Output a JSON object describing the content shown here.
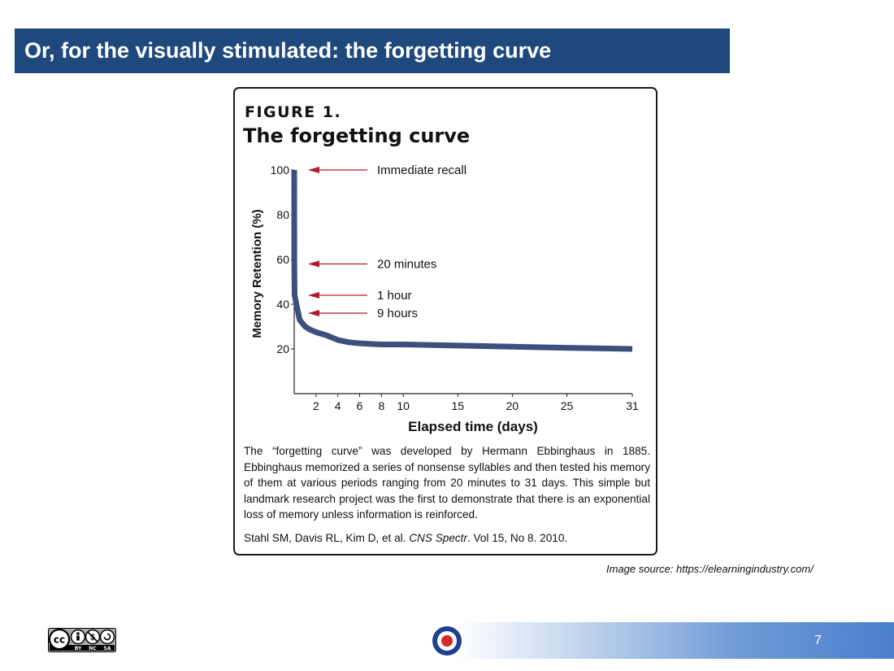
{
  "slide": {
    "title": "Or, for the visually stimulated: the forgetting curve",
    "image_source": "Image source: https://elearningindustry.com/",
    "page_number": "7",
    "license_badge": {
      "icon": "creative-commons-by-nc-sa-icon",
      "labels": [
        "BY",
        "NC",
        "SA"
      ]
    },
    "logo_icon": "roundel-logo-icon"
  },
  "figure": {
    "label": "FIGURE 1.",
    "title": "The forgetting curve",
    "caption": "The “forgetting curve” was developed by Hermann Ebbinghaus in 1885. Ebbinghaus memorized a series of nonsense syllables and then tested his memory of them at various periods ranging from 20 minutes to 31 days. This simple but landmark research project was the first to demonstrate that there is an exponential loss of memory unless information is reinforced.",
    "citation_authors": "Stahl SM, Davis RL, Kim D, et al.",
    "citation_journal": "CNS Spectr",
    "citation_rest": ". Vol 15, No 8. 2010."
  },
  "chart_data": {
    "type": "line",
    "title": "The forgetting curve",
    "xlabel": "Elapsed time (days)",
    "ylabel": "Memory Retention (%)",
    "xlim": [
      0,
      31
    ],
    "ylim": [
      0,
      100
    ],
    "xticks": [
      2,
      4,
      6,
      8,
      10,
      15,
      20,
      25,
      31
    ],
    "yticks": [
      20,
      40,
      60,
      80,
      100
    ],
    "grid": false,
    "series": [
      {
        "color": "#3d4f7c",
        "x": [
          0,
          0.01,
          0.04,
          0.2,
          0.375,
          0.5,
          1,
          1.5,
          2,
          3,
          4,
          5,
          6,
          8,
          10,
          15,
          20,
          25,
          31
        ],
        "y": [
          100,
          58,
          44,
          40,
          36,
          33,
          30,
          28.5,
          27.5,
          26,
          24,
          23,
          22.5,
          22,
          22,
          21.5,
          21,
          20.5,
          20
        ]
      }
    ],
    "annotations": [
      {
        "text": "Immediate recall",
        "y": 100
      },
      {
        "text": "20 minutes",
        "y": 58
      },
      {
        "text": "1 hour",
        "y": 44
      },
      {
        "text": "9 hours",
        "y": 36
      }
    ],
    "arrow_color": "#b01c2e"
  }
}
